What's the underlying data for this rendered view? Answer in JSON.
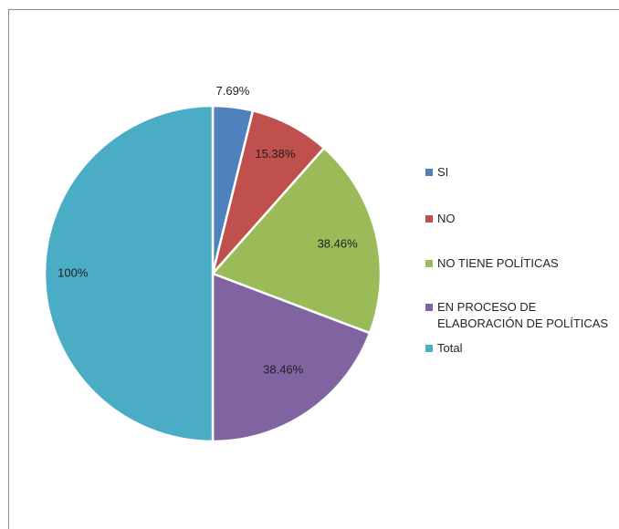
{
  "chart_data": {
    "type": "pie",
    "title": "",
    "categories": [
      "SI",
      "NO",
      "NO TIENE POLÍTICAS",
      "EN PROCESO DE ELABORACIÓN DE POLÍTICAS",
      "Total"
    ],
    "values": [
      7.69,
      15.38,
      38.46,
      38.46,
      100
    ],
    "data_labels": [
      "7.69%",
      "15.38%",
      "38.46%",
      "38.46%",
      "100%"
    ],
    "colors": [
      "#4F81BD",
      "#C0504D",
      "#9BBB59",
      "#8064A2",
      "#4BACC6"
    ],
    "start_angle": "12 o'clock, clockwise",
    "legend_position": "right"
  },
  "legend": {
    "items": [
      {
        "label": "SI",
        "color": "#4F81BD"
      },
      {
        "label": "NO",
        "color": "#C0504D"
      },
      {
        "label": "NO TIENE POLÍTICAS",
        "color": "#9BBB59"
      },
      {
        "label": "EN PROCESO DE ELABORACIÓN DE POLÍTICAS",
        "color": "#8064A2"
      },
      {
        "label": "Total",
        "color": "#4BACC6"
      }
    ]
  }
}
